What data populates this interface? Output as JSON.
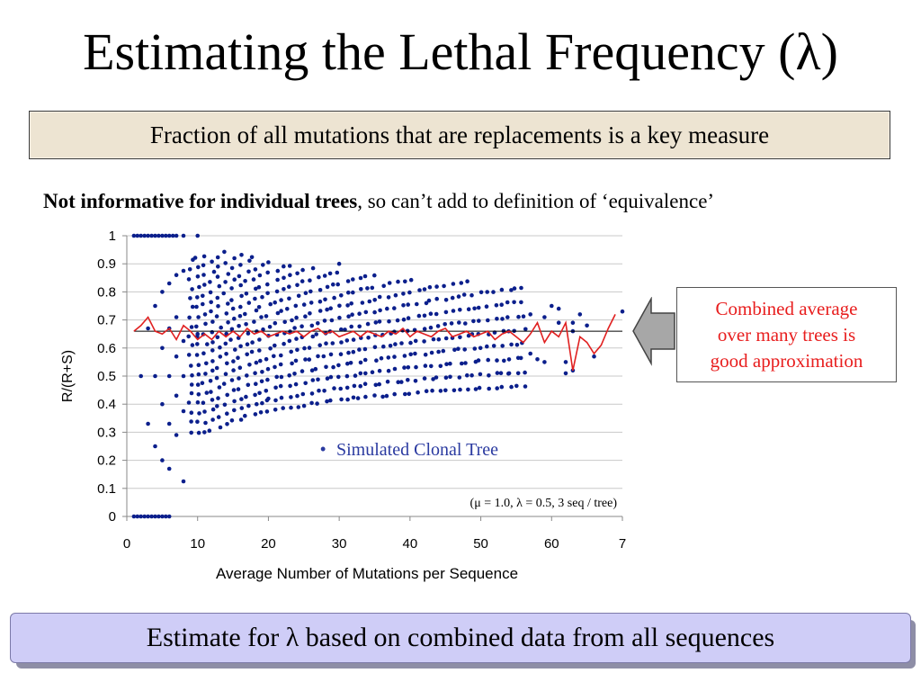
{
  "slide": {
    "title": "Estimating the Lethal Frequency (λ)",
    "subtitle": "Fraction of all mutations that are replacements is a key measure",
    "note_bold": "Not informative for individual trees",
    "note_rest": ", so can’t add to definition of ‘equivalence’",
    "callout_lines": [
      "Combined average",
      "over many trees is",
      "good approximation"
    ],
    "bottom_text": "Estimate for λ based on combined data from all sequences"
  },
  "colors": {
    "points": "#0b1f8c",
    "average_line": "#e02020",
    "reference_line": "#000000",
    "callout_text": "#e81e1e",
    "legend_text": "#2a3aa0",
    "bottom_box": "#cfcdf7",
    "subtitle_box": "#ede4d2"
  },
  "chart_data": {
    "type": "scatter",
    "xlabel": "Average Number of Mutations per Sequence",
    "ylabel": "R/(R+S)",
    "xlim": [
      0,
      70
    ],
    "ylim": [
      0,
      1
    ],
    "x_ticks": [
      "0",
      "10",
      "20",
      "30",
      "40",
      "50",
      "60",
      "7"
    ],
    "y_ticks": [
      "0",
      "0.1",
      "0.2",
      "0.3",
      "0.4",
      "0.5",
      "0.6",
      "0.7",
      "0.8",
      "0.9",
      "1"
    ],
    "grid": "horizontal",
    "legend_text": "Simulated Clonal Tree",
    "annotation": "(μ = 1.0, λ = 0.5, 3 seq / tree)",
    "reference_line_y": 0.66,
    "average_series": {
      "name": "Combined average",
      "x": [
        1,
        2,
        3,
        4,
        5,
        6,
        7,
        8,
        9,
        10,
        11,
        12,
        13,
        14,
        15,
        16,
        17,
        18,
        19,
        20,
        21,
        22,
        23,
        24,
        25,
        26,
        27,
        28,
        29,
        30,
        31,
        32,
        33,
        34,
        35,
        36,
        37,
        38,
        39,
        40,
        41,
        42,
        43,
        44,
        45,
        46,
        47,
        48,
        49,
        50,
        51,
        52,
        53,
        54,
        55,
        56,
        57,
        58,
        59,
        60,
        61,
        62,
        63,
        64,
        65,
        66,
        67,
        68,
        69
      ],
      "y": [
        0.66,
        0.68,
        0.71,
        0.66,
        0.65,
        0.67,
        0.63,
        0.68,
        0.66,
        0.63,
        0.65,
        0.63,
        0.66,
        0.64,
        0.66,
        0.64,
        0.67,
        0.65,
        0.66,
        0.64,
        0.65,
        0.66,
        0.65,
        0.66,
        0.64,
        0.66,
        0.67,
        0.65,
        0.66,
        0.64,
        0.65,
        0.66,
        0.64,
        0.66,
        0.65,
        0.64,
        0.66,
        0.65,
        0.67,
        0.64,
        0.66,
        0.65,
        0.64,
        0.66,
        0.67,
        0.64,
        0.65,
        0.66,
        0.64,
        0.65,
        0.66,
        0.63,
        0.65,
        0.66,
        0.64,
        0.62,
        0.65,
        0.69,
        0.62,
        0.66,
        0.64,
        0.69,
        0.52,
        0.64,
        0.62,
        0.58,
        0.61,
        0.67,
        0.72
      ]
    },
    "scatter_points": [
      [
        1,
        1.0
      ],
      [
        1.5,
        1.0
      ],
      [
        2,
        1.0
      ],
      [
        2.5,
        1.0
      ],
      [
        3,
        1.0
      ],
      [
        3.5,
        1.0
      ],
      [
        4,
        1.0
      ],
      [
        4.5,
        1.0
      ],
      [
        5,
        1.0
      ],
      [
        5.5,
        1.0
      ],
      [
        6,
        1.0
      ],
      [
        6.5,
        1.0
      ],
      [
        7,
        1.0
      ],
      [
        8,
        1.0
      ],
      [
        10,
        1.0
      ],
      [
        1,
        0.0
      ],
      [
        1.5,
        0.0
      ],
      [
        2,
        0.0
      ],
      [
        2.5,
        0.0
      ],
      [
        3,
        0.0
      ],
      [
        3.5,
        0.0
      ],
      [
        4,
        0.0
      ],
      [
        4.5,
        0.0
      ],
      [
        5,
        0.0
      ],
      [
        5.5,
        0.0
      ],
      [
        6,
        0.0
      ],
      [
        2,
        0.5
      ],
      [
        3,
        0.33
      ],
      [
        3,
        0.67
      ],
      [
        4,
        0.25
      ],
      [
        4,
        0.5
      ],
      [
        4,
        0.75
      ],
      [
        5,
        0.2
      ],
      [
        5,
        0.4
      ],
      [
        5,
        0.6
      ],
      [
        5,
        0.8
      ],
      [
        6,
        0.17
      ],
      [
        6,
        0.33
      ],
      [
        6,
        0.5
      ],
      [
        6,
        0.67
      ],
      [
        6,
        0.83
      ],
      [
        7,
        0.29
      ],
      [
        7,
        0.43
      ],
      [
        7,
        0.57
      ],
      [
        7,
        0.71
      ],
      [
        7,
        0.86
      ],
      [
        8,
        0.125
      ],
      [
        8,
        0.375
      ],
      [
        8,
        0.5
      ],
      [
        8,
        0.625
      ],
      [
        8,
        0.875
      ],
      [
        10,
        0.65
      ],
      [
        20,
        0.42
      ],
      [
        30,
        0.9
      ],
      [
        54,
        0.51
      ],
      [
        57,
        0.58
      ],
      [
        57,
        0.72
      ],
      [
        58,
        0.56
      ],
      [
        59,
        0.55
      ],
      [
        59,
        0.71
      ],
      [
        60,
        0.75
      ],
      [
        61,
        0.74
      ],
      [
        61,
        0.69
      ],
      [
        62,
        0.51
      ],
      [
        62,
        0.55
      ],
      [
        63,
        0.52
      ],
      [
        63,
        0.66
      ],
      [
        63,
        0.69
      ],
      [
        64,
        0.72
      ],
      [
        65,
        0.68
      ],
      [
        66,
        0.57
      ],
      [
        70,
        0.73
      ]
    ]
  }
}
